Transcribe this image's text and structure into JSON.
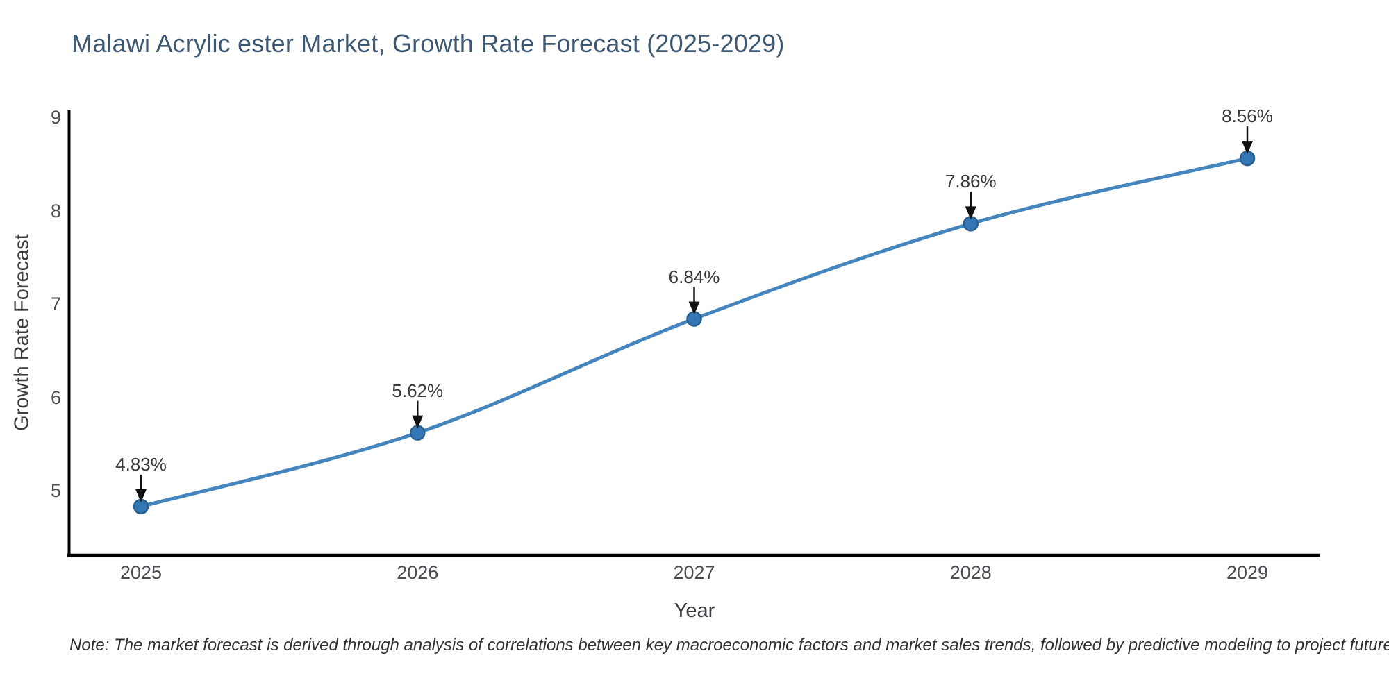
{
  "title": "Malawi Acrylic ester Market, Growth Rate Forecast (2025-2029)",
  "note": "Note: The market forecast is derived through analysis of correlations between key macroeconomic factors and market sales trends, followed by predictive modeling to project future sales.",
  "chart_data": {
    "type": "line",
    "title": "Malawi Acrylic ester Market, Growth Rate Forecast (2025-2029)",
    "xlabel": "Year",
    "ylabel": "Growth Rate Forecast",
    "x": [
      2025,
      2026,
      2027,
      2028,
      2029
    ],
    "values": [
      4.83,
      5.62,
      6.84,
      7.86,
      8.56
    ],
    "point_labels": [
      "4.83%",
      "5.62%",
      "6.84%",
      "7.86%",
      "8.56%"
    ],
    "x_tick_labels": [
      "2025",
      "2026",
      "2027",
      "2028",
      "2029"
    ],
    "y_ticks": [
      5,
      6,
      7,
      8,
      9
    ],
    "xlim": [
      2024.74,
      2029.26
    ],
    "ylim": [
      4.31,
      9.08
    ],
    "grid": false,
    "legend": "none",
    "marker_style": "circle",
    "annotation_style": "down-arrow",
    "colors": {
      "line": "#4485bd",
      "marker_fill": "#3377b4",
      "marker_edge": "#28608f",
      "arrow": "#111111",
      "spine": "#000000",
      "title_text": "#3e5871",
      "tick_text": "#4b4b52",
      "axis_title_text": "#3c3c42",
      "note_text": "#303030",
      "background": "#ffffff"
    }
  }
}
